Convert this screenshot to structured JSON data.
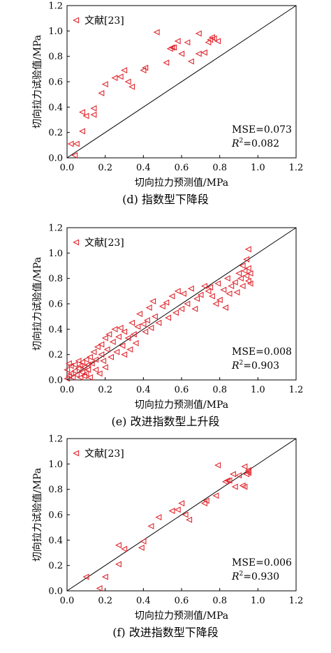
{
  "chart_data": [
    {
      "type": "scatter",
      "caption": "(d) 指数型下降段",
      "xlabel": "切向拉力预测值/MPa",
      "ylabel": "切向拉力试验值/MPa",
      "xlim": [
        0,
        1.2
      ],
      "ylim": [
        0,
        1.2
      ],
      "xticks": [
        "0.0",
        "0.2",
        "0.4",
        "0.6",
        "0.8",
        "1.0",
        "1.2"
      ],
      "yticks": [
        "0.0",
        "0.2",
        "0.4",
        "0.6",
        "0.8",
        "1.0",
        "1.2"
      ],
      "legend": {
        "label": "文献[23]",
        "position": "top-left"
      },
      "reference_line": "y=x",
      "mse_label": "MSE=0.073",
      "r2_prefix": "R",
      "r2_value": "=0.082",
      "series": [
        {
          "name": "文献[23]",
          "marker": "triangle-left",
          "color": "#e0282f",
          "points": [
            [
              0.02,
              0.11
            ],
            [
              0.05,
              0.11
            ],
            [
              0.04,
              0.02
            ],
            [
              0.08,
              0.21
            ],
            [
              0.08,
              0.36
            ],
            [
              0.1,
              0.33
            ],
            [
              0.14,
              0.34
            ],
            [
              0.14,
              0.39
            ],
            [
              0.18,
              0.51
            ],
            [
              0.2,
              0.58
            ],
            [
              0.25,
              0.63
            ],
            [
              0.28,
              0.64
            ],
            [
              0.3,
              0.69
            ],
            [
              0.32,
              0.6
            ],
            [
              0.34,
              0.56
            ],
            [
              0.4,
              0.69
            ],
            [
              0.41,
              0.71
            ],
            [
              0.47,
              0.99
            ],
            [
              0.52,
              0.75
            ],
            [
              0.54,
              0.86
            ],
            [
              0.55,
              0.87
            ],
            [
              0.56,
              0.87
            ],
            [
              0.58,
              0.92
            ],
            [
              0.6,
              0.82
            ],
            [
              0.63,
              0.91
            ],
            [
              0.65,
              0.76
            ],
            [
              0.69,
              0.82
            ],
            [
              0.69,
              0.98
            ],
            [
              0.72,
              0.83
            ],
            [
              0.74,
              0.91
            ],
            [
              0.75,
              0.93
            ],
            [
              0.76,
              0.95
            ],
            [
              0.77,
              0.94
            ],
            [
              0.79,
              0.92
            ]
          ]
        }
      ]
    },
    {
      "type": "scatter",
      "caption": "(e) 改进指数型上升段",
      "xlabel": "切向拉力预测值/MPa",
      "ylabel": "切向拉力试验值/MPa",
      "xlim": [
        0,
        1.2
      ],
      "ylim": [
        0,
        1.2
      ],
      "xticks": [
        "0.0",
        "0.2",
        "0.4",
        "0.6",
        "0.8",
        "1.0",
        "1.2"
      ],
      "yticks": [
        "0.0",
        "0.2",
        "0.4",
        "0.6",
        "0.8",
        "1.0",
        "1.2"
      ],
      "legend": {
        "label": "文献[23]",
        "position": "top-left"
      },
      "reference_line": "y=x",
      "mse_label": "MSE=0.008",
      "r2_prefix": "R",
      "r2_value": "=0.903",
      "series": [
        {
          "name": "文献[23]",
          "marker": "triangle-left",
          "color": "#e0282f",
          "points": [
            [
              0.0,
              0.01
            ],
            [
              0.01,
              0.03
            ],
            [
              0.02,
              0.05
            ],
            [
              0.0,
              0.08
            ],
            [
              0.02,
              0.11
            ],
            [
              0.01,
              0.13
            ],
            [
              0.03,
              0.02
            ],
            [
              0.04,
              0.07
            ],
            [
              0.04,
              0.12
            ],
            [
              0.05,
              0.04
            ],
            [
              0.06,
              0.09
            ],
            [
              0.06,
              0.15
            ],
            [
              0.07,
              0.02
            ],
            [
              0.07,
              0.11
            ],
            [
              0.08,
              0.06
            ],
            [
              0.08,
              0.14
            ],
            [
              0.09,
              0.03
            ],
            [
              0.09,
              0.1
            ],
            [
              0.1,
              0.16
            ],
            [
              0.1,
              0.05
            ],
            [
              0.11,
              0.12
            ],
            [
              0.11,
              0.08
            ],
            [
              0.12,
              0.02
            ],
            [
              0.12,
              0.18
            ],
            [
              0.13,
              0.13
            ],
            [
              0.14,
              0.22
            ],
            [
              0.15,
              0.16
            ],
            [
              0.15,
              0.08
            ],
            [
              0.16,
              0.26
            ],
            [
              0.17,
              0.05
            ],
            [
              0.18,
              0.2
            ],
            [
              0.18,
              0.28
            ],
            [
              0.19,
              0.15
            ],
            [
              0.2,
              0.33
            ],
            [
              0.2,
              0.1
            ],
            [
              0.21,
              0.24
            ],
            [
              0.22,
              0.36
            ],
            [
              0.23,
              0.18
            ],
            [
              0.24,
              0.3
            ],
            [
              0.25,
              0.4
            ],
            [
              0.26,
              0.22
            ],
            [
              0.27,
              0.34
            ],
            [
              0.28,
              0.41
            ],
            [
              0.29,
              0.27
            ],
            [
              0.3,
              0.38
            ],
            [
              0.3,
              0.2
            ],
            [
              0.32,
              0.33
            ],
            [
              0.33,
              0.24
            ],
            [
              0.34,
              0.45
            ],
            [
              0.35,
              0.36
            ],
            [
              0.36,
              0.29
            ],
            [
              0.37,
              0.42
            ],
            [
              0.38,
              0.52
            ],
            [
              0.4,
              0.44
            ],
            [
              0.41,
              0.38
            ],
            [
              0.42,
              0.47
            ],
            [
              0.43,
              0.57
            ],
            [
              0.44,
              0.41
            ],
            [
              0.45,
              0.62
            ],
            [
              0.46,
              0.5
            ],
            [
              0.48,
              0.45
            ],
            [
              0.5,
              0.58
            ],
            [
              0.52,
              0.61
            ],
            [
              0.53,
              0.49
            ],
            [
              0.55,
              0.66
            ],
            [
              0.57,
              0.53
            ],
            [
              0.58,
              0.7
            ],
            [
              0.6,
              0.56
            ],
            [
              0.61,
              0.68
            ],
            [
              0.63,
              0.6
            ],
            [
              0.65,
              0.72
            ],
            [
              0.67,
              0.56
            ],
            [
              0.68,
              0.64
            ],
            [
              0.7,
              0.67
            ],
            [
              0.72,
              0.74
            ],
            [
              0.74,
              0.7
            ],
            [
              0.75,
              0.73
            ],
            [
              0.76,
              0.66
            ],
            [
              0.78,
              0.6
            ],
            [
              0.79,
              0.76
            ],
            [
              0.8,
              0.63
            ],
            [
              0.82,
              0.71
            ],
            [
              0.83,
              0.57
            ],
            [
              0.84,
              0.8
            ],
            [
              0.85,
              0.68
            ],
            [
              0.86,
              0.74
            ],
            [
              0.88,
              0.77
            ],
            [
              0.89,
              0.69
            ],
            [
              0.9,
              0.84
            ],
            [
              0.91,
              0.8
            ],
            [
              0.92,
              0.9
            ],
            [
              0.92,
              0.74
            ],
            [
              0.93,
              0.86
            ],
            [
              0.94,
              0.82
            ],
            [
              0.94,
              0.95
            ],
            [
              0.95,
              0.78
            ],
            [
              0.95,
              0.88
            ],
            [
              0.95,
              1.03
            ],
            [
              0.96,
              0.84
            ],
            [
              0.96,
              0.76
            ]
          ]
        }
      ]
    },
    {
      "type": "scatter",
      "caption": "(f) 改进指数型下降段",
      "xlabel": "切向拉力预测值/MPa",
      "ylabel": "切向拉力试验值/MPa",
      "xlim": [
        0,
        1.2
      ],
      "ylim": [
        0,
        1.2
      ],
      "xticks": [
        "0.0",
        "0.2",
        "0.4",
        "0.6",
        "0.8",
        "1.0",
        "1.2"
      ],
      "yticks": [
        "0.0",
        "0.2",
        "0.4",
        "0.6",
        "0.8",
        "1.0",
        "1.2"
      ],
      "legend": {
        "label": "文献[23]",
        "position": "top-left"
      },
      "reference_line": "y=x",
      "mse_label": "MSE=0.006",
      "r2_prefix": "R",
      "r2_value": "=0.930",
      "series": [
        {
          "name": "文献[23]",
          "marker": "triangle-left",
          "color": "#e0282f",
          "points": [
            [
              0.1,
              0.11
            ],
            [
              0.17,
              0.02
            ],
            [
              0.2,
              0.11
            ],
            [
              0.27,
              0.21
            ],
            [
              0.27,
              0.36
            ],
            [
              0.3,
              0.33
            ],
            [
              0.39,
              0.34
            ],
            [
              0.4,
              0.39
            ],
            [
              0.44,
              0.51
            ],
            [
              0.48,
              0.58
            ],
            [
              0.55,
              0.63
            ],
            [
              0.58,
              0.64
            ],
            [
              0.6,
              0.69
            ],
            [
              0.62,
              0.6
            ],
            [
              0.64,
              0.56
            ],
            [
              0.72,
              0.69
            ],
            [
              0.73,
              0.71
            ],
            [
              0.79,
              0.99
            ],
            [
              0.78,
              0.75
            ],
            [
              0.83,
              0.86
            ],
            [
              0.84,
              0.87
            ],
            [
              0.85,
              0.87
            ],
            [
              0.87,
              0.92
            ],
            [
              0.88,
              0.82
            ],
            [
              0.9,
              0.91
            ],
            [
              0.92,
              0.83
            ],
            [
              0.93,
              0.82
            ],
            [
              0.93,
              0.98
            ],
            [
              0.95,
              0.93
            ],
            [
              0.95,
              0.95
            ],
            [
              0.95,
              0.94
            ],
            [
              0.94,
              0.92
            ]
          ]
        }
      ]
    }
  ]
}
